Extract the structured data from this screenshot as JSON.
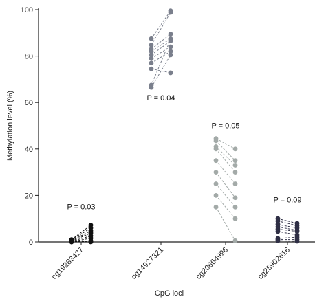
{
  "chart_data": {
    "type": "scatter",
    "subtype": "paired-dot-plot",
    "title": "",
    "xlabel": "CpG loci",
    "ylabel": "Methylation level (%)",
    "ylim": [
      0,
      100
    ],
    "yticks": [
      0,
      20,
      40,
      60,
      80,
      100
    ],
    "grid": false,
    "legend": "none",
    "groups": [
      {
        "name": "cg19283427",
        "color": "#111111",
        "p_label": "P = 0.03",
        "p_value_y": 14,
        "pairs": [
          [
            1.0,
            7.2
          ],
          [
            0.8,
            6.0
          ],
          [
            0.5,
            4.8
          ],
          [
            0.3,
            3.8
          ],
          [
            0.2,
            2.6
          ],
          [
            0.1,
            1.6
          ],
          [
            0.0,
            0.5
          ],
          [
            0.0,
            0.0
          ],
          [
            0.2,
            0.1
          ]
        ]
      },
      {
        "name": "cg14927321",
        "color": "#7a7f8c",
        "p_label": "P = 0.04",
        "p_value_y": 61,
        "pairs": [
          [
            87.5,
            99.5
          ],
          [
            84.8,
            98.8
          ],
          [
            83.0,
            89.5
          ],
          [
            82.0,
            87.5
          ],
          [
            80.5,
            86.5
          ],
          [
            79.0,
            84.0
          ],
          [
            77.0,
            82.0
          ],
          [
            74.5,
            72.8
          ],
          [
            67.5,
            87.2
          ],
          [
            66.5,
            80.5
          ]
        ]
      },
      {
        "name": "cg20664996",
        "color": "#a3aaa8",
        "p_label": "P = 0.05",
        "p_value_y": 49,
        "pairs": [
          [
            44.5,
            40.0
          ],
          [
            43.5,
            35.0
          ],
          [
            41.0,
            33.0
          ],
          [
            40.0,
            30.0
          ],
          [
            35.0,
            25.0
          ],
          [
            30.0,
            19.0
          ],
          [
            25.0,
            15.0
          ],
          [
            20.0,
            10.0
          ],
          [
            15.0,
            0.5
          ]
        ]
      },
      {
        "name": "cg25902616",
        "color": "#2f2f45",
        "p_label": "P = 0.09",
        "p_value_y": 17,
        "pairs": [
          [
            10.0,
            8.0
          ],
          [
            9.0,
            7.0
          ],
          [
            7.5,
            6.0
          ],
          [
            6.5,
            5.0
          ],
          [
            5.5,
            4.5
          ],
          [
            4.5,
            3.0
          ],
          [
            1.5,
            2.0
          ],
          [
            1.0,
            1.0
          ],
          [
            0.5,
            0.3
          ]
        ]
      }
    ]
  }
}
